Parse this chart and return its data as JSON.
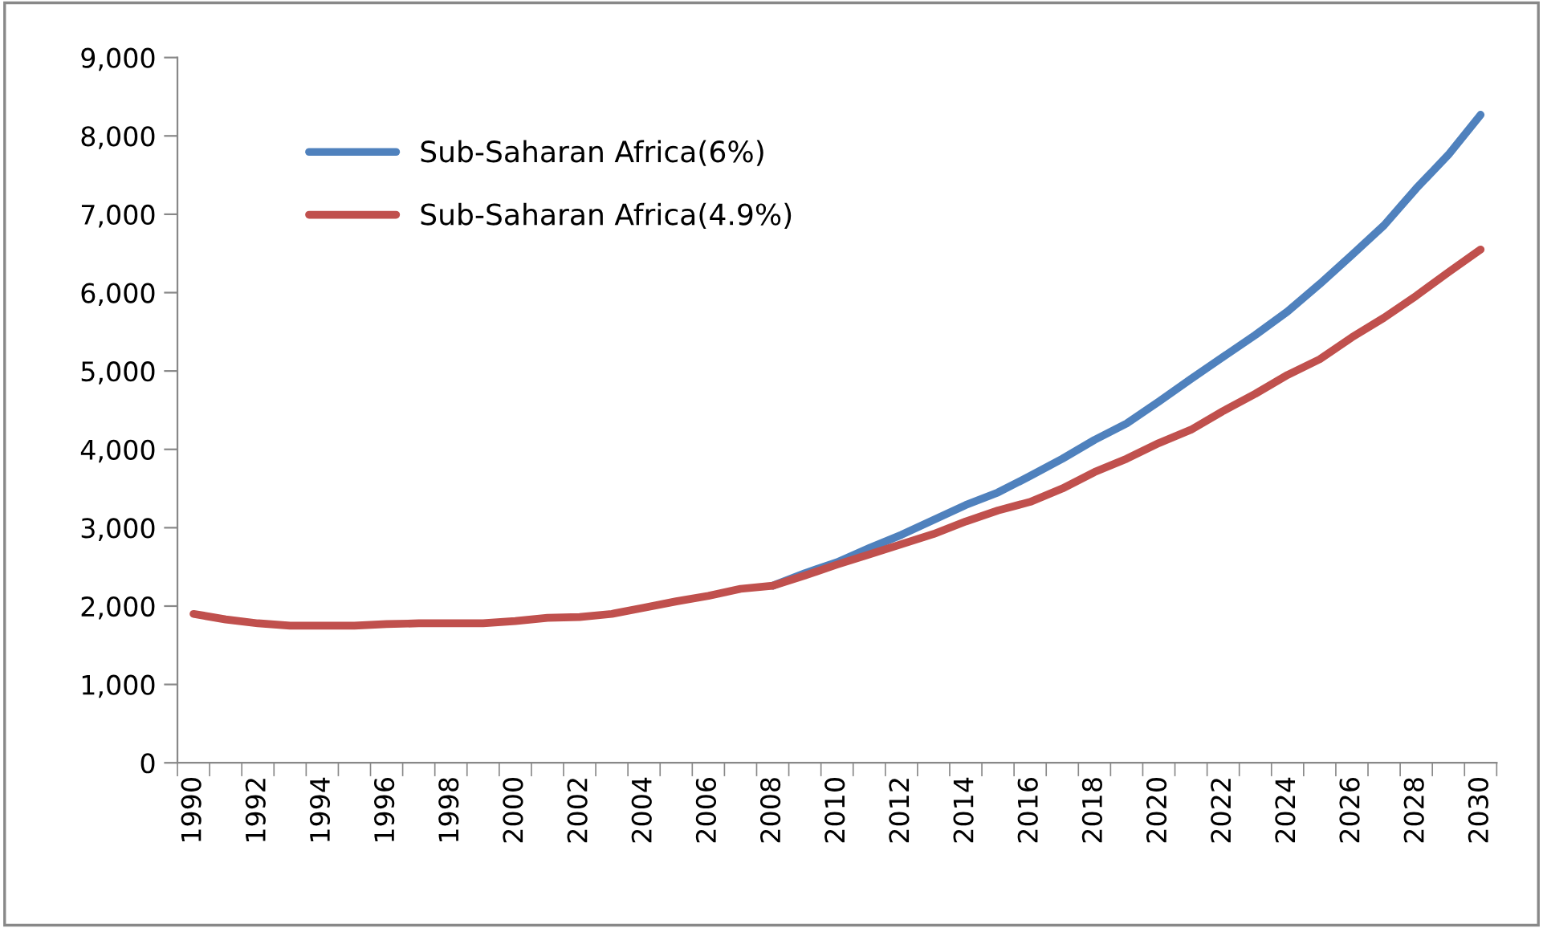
{
  "chart_data": {
    "type": "line",
    "categories": [
      "1990",
      null,
      "1992",
      null,
      "1994",
      null,
      "1996",
      null,
      "1998",
      null,
      "2000",
      null,
      "2002",
      null,
      "2004",
      null,
      "2006",
      null,
      "2008",
      null,
      "2010",
      null,
      "2012",
      null,
      "2014",
      null,
      "2016",
      null,
      "2018",
      null,
      "2020",
      null,
      "2022",
      null,
      "2024",
      null,
      "2026",
      null,
      "2028",
      null,
      "2030"
    ],
    "series": [
      {
        "name": "Sub-Saharan Africa(6%)",
        "color": "#4f81bd",
        "values": [
          null,
          null,
          null,
          null,
          null,
          null,
          null,
          null,
          null,
          null,
          null,
          null,
          null,
          null,
          null,
          null,
          null,
          null,
          2260,
          2420,
          2560,
          2740,
          2910,
          3100,
          3290,
          3450,
          3660,
          3880,
          4120,
          4330,
          4610,
          4900,
          5180,
          5460,
          5760,
          6110,
          6480,
          6860,
          7330,
          7760,
          8270
        ]
      },
      {
        "name": "Sub-Saharan Africa(4.9%)",
        "color": "#c0504d",
        "values": [
          1900,
          1830,
          1780,
          1750,
          1750,
          1750,
          1770,
          1780,
          1780,
          1780,
          1810,
          1850,
          1860,
          1900,
          1980,
          2060,
          2130,
          2220,
          2260,
          2390,
          2530,
          2660,
          2790,
          2920,
          3080,
          3220,
          3330,
          3500,
          3710,
          3880,
          4080,
          4250,
          4490,
          4710,
          4950,
          5150,
          5430,
          5680,
          5960,
          6260,
          6550
        ]
      }
    ],
    "ylim": [
      0,
      9000
    ],
    "yticks": [
      {
        "value": 0,
        "label": "0"
      },
      {
        "value": 1000,
        "label": "1,000"
      },
      {
        "value": 2000,
        "label": "2,000"
      },
      {
        "value": 3000,
        "label": "3,000"
      },
      {
        "value": 4000,
        "label": "4,000"
      },
      {
        "value": 5000,
        "label": "5,000"
      },
      {
        "value": 6000,
        "label": "6,000"
      },
      {
        "value": 7000,
        "label": "7,000"
      },
      {
        "value": 8000,
        "label": "8,000"
      },
      {
        "value": 9000,
        "label": "9,000"
      }
    ],
    "grid": false,
    "legend": "top left",
    "marker": "none",
    "line_style": "solid"
  }
}
